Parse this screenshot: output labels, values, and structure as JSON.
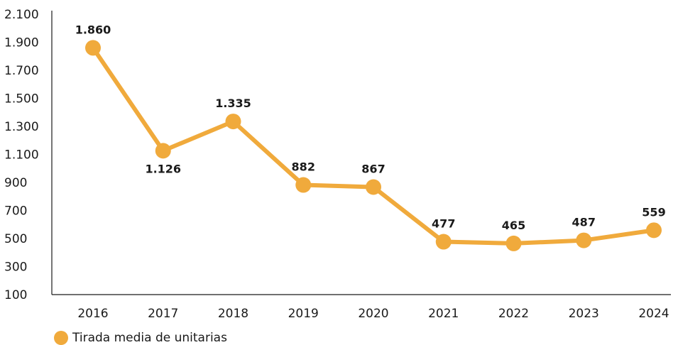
{
  "chart_data": {
    "type": "line",
    "categories": [
      "2016",
      "2017",
      "2018",
      "2019",
      "2020",
      "2021",
      "2022",
      "2023",
      "2024"
    ],
    "series": [
      {
        "name": "Tirada media de unitarias",
        "values": [
          1860,
          1126,
          1335,
          882,
          867,
          477,
          465,
          487,
          559
        ],
        "labels": [
          "1.860",
          "1.126",
          "1.335",
          "882",
          "867",
          "477",
          "465",
          "487",
          "559"
        ],
        "color": "#F0AA3C"
      }
    ],
    "yticks": [
      "2.100",
      "1.900",
      "1.700",
      "1.500",
      "1.300",
      "1.100",
      "900",
      "700",
      "500",
      "300",
      "100"
    ],
    "ylim": [
      100,
      2100
    ],
    "grid": false,
    "legend_position": "bottom-left"
  }
}
